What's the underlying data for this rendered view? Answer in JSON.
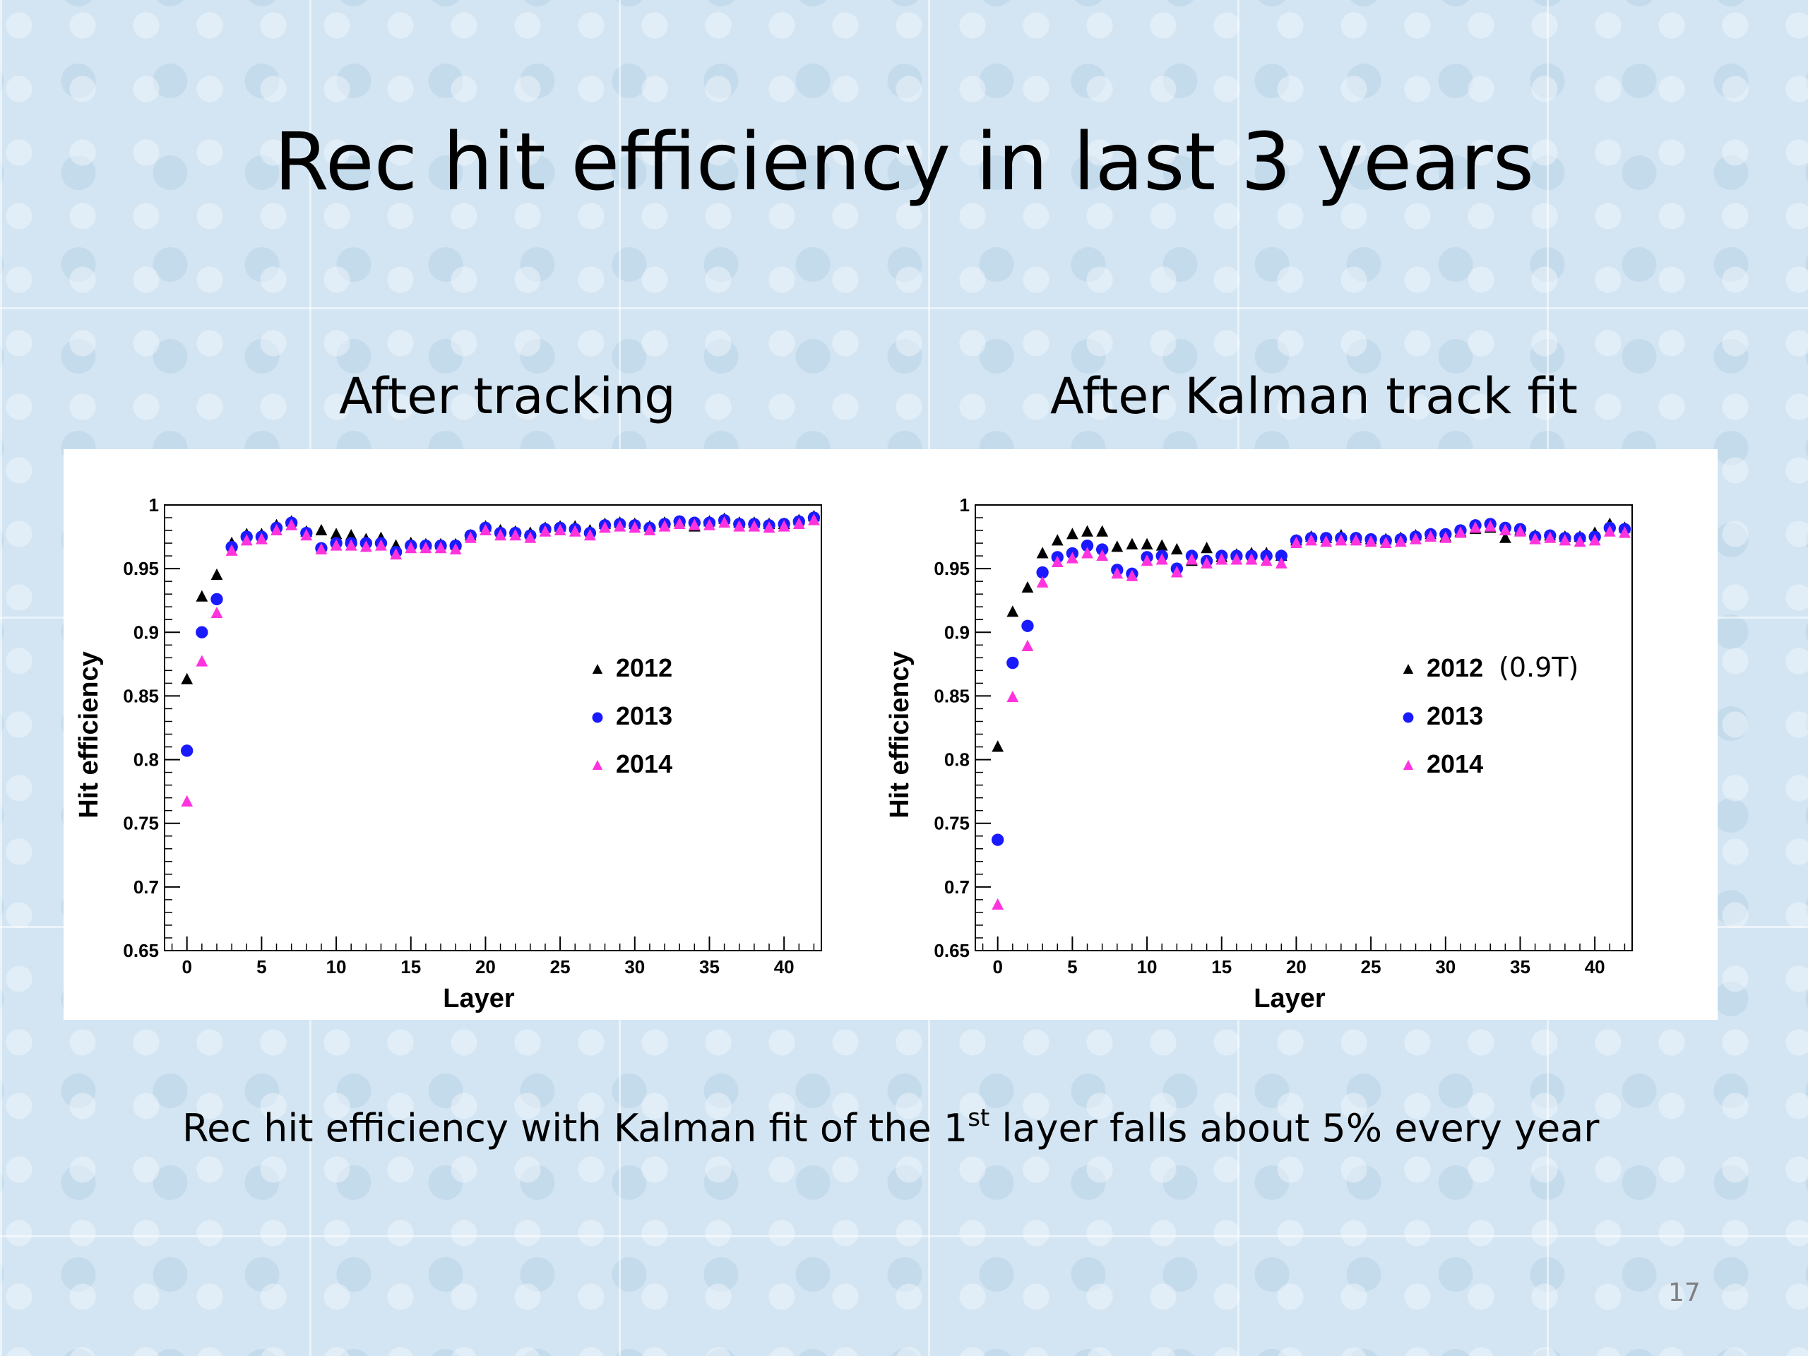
{
  "slide": {
    "title": "Rec hit efficiency in last 3 years",
    "subtitle_left": "After tracking",
    "subtitle_right": "After Kalman track fit",
    "caption_part1": "Rec hit efficiency  with Kalman fit of the 1",
    "caption_sup": "st",
    "caption_part2": " layer falls about 5% every year",
    "page_number": "17"
  },
  "chart_data": [
    {
      "type": "scatter",
      "title": "",
      "xlabel": "Layer",
      "ylabel": "Hit efficiency",
      "xlim": [
        -1.5,
        42.5
      ],
      "ylim": [
        0.65,
        1.0
      ],
      "xticks": [
        0,
        5,
        10,
        15,
        20,
        25,
        30,
        35,
        40
      ],
      "yticks": [
        0.65,
        0.7,
        0.75,
        0.8,
        0.85,
        0.9,
        0.95,
        1
      ],
      "ytick_labels": [
        "0.65",
        "0.7",
        "0.75",
        "0.8",
        "0.85",
        "0.9",
        "0.95",
        "1"
      ],
      "legend_position": "right-middle",
      "series": [
        {
          "name": "2012",
          "marker": "triangle",
          "color": "#000000",
          "x": [
            0,
            1,
            2,
            3,
            4,
            5,
            6,
            7,
            8,
            9,
            10,
            11,
            12,
            13,
            14,
            15,
            16,
            17,
            18,
            19,
            20,
            21,
            22,
            23,
            24,
            25,
            26,
            27,
            28,
            29,
            30,
            31,
            32,
            33,
            34,
            35,
            36,
            37,
            38,
            39,
            40,
            41,
            42
          ],
          "values": [
            0.863,
            0.928,
            0.945,
            0.97,
            0.977,
            0.977,
            0.984,
            0.987,
            0.979,
            0.98,
            0.977,
            0.976,
            0.973,
            0.974,
            0.968,
            0.97,
            0.969,
            0.969,
            0.969,
            0.976,
            0.983,
            0.98,
            0.979,
            0.978,
            0.982,
            0.983,
            0.983,
            0.98,
            0.985,
            0.986,
            0.985,
            0.983,
            0.986,
            0.987,
            0.983,
            0.987,
            0.989,
            0.986,
            0.986,
            0.985,
            0.985,
            0.988,
            0.991
          ]
        },
        {
          "name": "2013",
          "marker": "circle",
          "color": "#1a1aff",
          "x": [
            0,
            1,
            2,
            3,
            4,
            5,
            6,
            7,
            8,
            9,
            10,
            11,
            12,
            13,
            14,
            15,
            16,
            17,
            18,
            19,
            20,
            21,
            22,
            23,
            24,
            25,
            26,
            27,
            28,
            29,
            30,
            31,
            32,
            33,
            34,
            35,
            36,
            37,
            38,
            39,
            40,
            41,
            42
          ],
          "values": [
            0.807,
            0.9,
            0.926,
            0.967,
            0.975,
            0.975,
            0.982,
            0.986,
            0.978,
            0.966,
            0.97,
            0.97,
            0.97,
            0.97,
            0.963,
            0.968,
            0.968,
            0.968,
            0.968,
            0.976,
            0.982,
            0.978,
            0.978,
            0.976,
            0.981,
            0.982,
            0.981,
            0.978,
            0.984,
            0.985,
            0.984,
            0.982,
            0.985,
            0.987,
            0.986,
            0.986,
            0.988,
            0.985,
            0.985,
            0.984,
            0.985,
            0.987,
            0.99
          ]
        },
        {
          "name": "2014",
          "marker": "triangle",
          "color": "#ff33dd",
          "x": [
            0,
            1,
            2,
            3,
            4,
            5,
            6,
            7,
            8,
            9,
            10,
            11,
            12,
            13,
            14,
            15,
            16,
            17,
            18,
            19,
            20,
            21,
            22,
            23,
            24,
            25,
            26,
            27,
            28,
            29,
            30,
            31,
            32,
            33,
            34,
            35,
            36,
            37,
            38,
            39,
            40,
            41,
            42
          ],
          "values": [
            0.767,
            0.877,
            0.915,
            0.964,
            0.972,
            0.973,
            0.98,
            0.984,
            0.976,
            0.965,
            0.968,
            0.968,
            0.967,
            0.968,
            0.961,
            0.966,
            0.966,
            0.966,
            0.965,
            0.974,
            0.98,
            0.976,
            0.976,
            0.974,
            0.979,
            0.98,
            0.979,
            0.976,
            0.982,
            0.983,
            0.982,
            0.98,
            0.983,
            0.985,
            0.984,
            0.984,
            0.986,
            0.983,
            0.983,
            0.982,
            0.983,
            0.985,
            0.988
          ]
        }
      ]
    },
    {
      "type": "scatter",
      "title": "",
      "xlabel": "Layer",
      "ylabel": "Hit efficiency",
      "xlim": [
        -1.5,
        42.5
      ],
      "ylim": [
        0.65,
        1.0
      ],
      "xticks": [
        0,
        5,
        10,
        15,
        20,
        25,
        30,
        35,
        40
      ],
      "yticks": [
        0.65,
        0.7,
        0.75,
        0.8,
        0.85,
        0.9,
        0.95,
        1
      ],
      "ytick_labels": [
        "0.65",
        "0.7",
        "0.75",
        "0.8",
        "0.85",
        "0.9",
        "0.95",
        "1"
      ],
      "legend_position": "right-middle",
      "legend_note": "(0.9T)",
      "series": [
        {
          "name": "2012",
          "marker": "triangle",
          "color": "#000000",
          "x": [
            0,
            1,
            2,
            3,
            4,
            5,
            6,
            7,
            8,
            9,
            10,
            11,
            12,
            13,
            14,
            15,
            16,
            17,
            18,
            19,
            20,
            21,
            22,
            23,
            24,
            25,
            26,
            27,
            28,
            29,
            30,
            31,
            32,
            33,
            34,
            35,
            36,
            37,
            38,
            39,
            40,
            41,
            42
          ],
          "values": [
            0.81,
            0.916,
            0.935,
            0.962,
            0.972,
            0.977,
            0.979,
            0.979,
            0.967,
            0.969,
            0.969,
            0.968,
            0.965,
            0.956,
            0.966,
            0.959,
            0.961,
            0.962,
            0.962,
            0.96,
            0.972,
            0.975,
            0.974,
            0.976,
            0.974,
            0.973,
            0.973,
            0.974,
            0.976,
            0.977,
            0.975,
            0.979,
            0.981,
            0.982,
            0.974,
            0.98,
            0.976,
            0.976,
            0.975,
            0.975,
            0.978,
            0.985,
            0.982
          ]
        },
        {
          "name": "2013",
          "marker": "circle",
          "color": "#1a1aff",
          "x": [
            0,
            1,
            2,
            3,
            4,
            5,
            6,
            7,
            8,
            9,
            10,
            11,
            12,
            13,
            14,
            15,
            16,
            17,
            18,
            19,
            20,
            21,
            22,
            23,
            24,
            25,
            26,
            27,
            28,
            29,
            30,
            31,
            32,
            33,
            34,
            35,
            36,
            37,
            38,
            39,
            40,
            41,
            42
          ],
          "values": [
            0.737,
            0.876,
            0.905,
            0.947,
            0.959,
            0.962,
            0.968,
            0.965,
            0.949,
            0.946,
            0.959,
            0.96,
            0.95,
            0.96,
            0.956,
            0.96,
            0.96,
            0.96,
            0.96,
            0.96,
            0.972,
            0.974,
            0.974,
            0.974,
            0.974,
            0.973,
            0.972,
            0.973,
            0.975,
            0.977,
            0.977,
            0.98,
            0.984,
            0.985,
            0.982,
            0.981,
            0.975,
            0.976,
            0.974,
            0.974,
            0.975,
            0.982,
            0.981
          ]
        },
        {
          "name": "2014",
          "marker": "triangle",
          "color": "#ff33dd",
          "x": [
            0,
            1,
            2,
            3,
            4,
            5,
            6,
            7,
            8,
            9,
            10,
            11,
            12,
            13,
            14,
            15,
            16,
            17,
            18,
            19,
            20,
            21,
            22,
            23,
            24,
            25,
            26,
            27,
            28,
            29,
            30,
            31,
            32,
            33,
            34,
            35,
            36,
            37,
            38,
            39,
            40,
            41,
            42
          ],
          "values": [
            0.686,
            0.849,
            0.889,
            0.939,
            0.955,
            0.958,
            0.962,
            0.96,
            0.946,
            0.944,
            0.956,
            0.957,
            0.947,
            0.957,
            0.954,
            0.957,
            0.957,
            0.957,
            0.956,
            0.954,
            0.97,
            0.972,
            0.971,
            0.972,
            0.972,
            0.971,
            0.97,
            0.971,
            0.973,
            0.975,
            0.974,
            0.978,
            0.982,
            0.983,
            0.98,
            0.979,
            0.973,
            0.974,
            0.972,
            0.971,
            0.972,
            0.979,
            0.978
          ]
        }
      ]
    }
  ]
}
